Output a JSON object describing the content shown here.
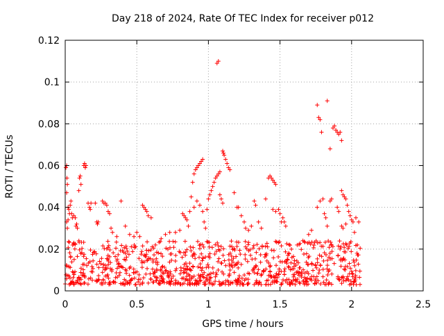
{
  "chart_data": {
    "type": "scatter",
    "title": "Day 218 of 2024, Rate Of TEC Index for receiver p012",
    "xlabel": "GPS time / hours",
    "ylabel": "ROTI / TECUs",
    "xlim": [
      0,
      2.5
    ],
    "ylim": [
      0,
      0.12
    ],
    "x_ticks": [
      0,
      0.5,
      1,
      1.5,
      2,
      2.5
    ],
    "x_tick_labels": [
      "0",
      "0.5",
      "1",
      "1.5",
      "2",
      "2.5"
    ],
    "y_ticks": [
      0,
      0.02,
      0.04,
      0.06,
      0.08,
      0.1,
      0.12
    ],
    "y_tick_labels": [
      "0",
      "0.02",
      "0.04",
      "0.06",
      "0.08",
      "0.1",
      "0.12"
    ],
    "grid": true,
    "legend": "none",
    "marker": "+",
    "series": [
      {
        "color": "#ff0000",
        "points": [
          [
            0.005,
            0.059
          ],
          [
            0.01,
            0.06
          ],
          [
            0.012,
            0.054
          ],
          [
            0.015,
            0.051
          ],
          [
            0.01,
            0.047
          ],
          [
            0.02,
            0.04
          ],
          [
            0.025,
            0.039
          ],
          [
            0.03,
            0.037
          ],
          [
            0.035,
            0.041
          ],
          [
            0.04,
            0.043
          ],
          [
            0.01,
            0.033
          ],
          [
            0.015,
            0.03
          ],
          [
            0.02,
            0.034
          ],
          [
            0.045,
            0.037
          ],
          [
            0.05,
            0.035
          ],
          [
            0.06,
            0.036
          ],
          [
            0.07,
            0.035
          ],
          [
            0.075,
            0.031
          ],
          [
            0.08,
            0.032
          ],
          [
            0.085,
            0.03
          ],
          [
            0.1,
            0.054
          ],
          [
            0.105,
            0.055
          ],
          [
            0.11,
            0.051
          ],
          [
            0.095,
            0.048
          ],
          [
            0.13,
            0.06
          ],
          [
            0.135,
            0.061
          ],
          [
            0.14,
            0.059
          ],
          [
            0.145,
            0.06
          ],
          [
            0.16,
            0.042
          ],
          [
            0.17,
            0.04
          ],
          [
            0.175,
            0.039
          ],
          [
            0.18,
            0.042
          ],
          [
            0.21,
            0.042
          ],
          [
            0.22,
            0.033
          ],
          [
            0.225,
            0.032
          ],
          [
            0.23,
            0.033
          ],
          [
            0.26,
            0.043
          ],
          [
            0.27,
            0.042
          ],
          [
            0.28,
            0.042
          ],
          [
            0.29,
            0.041
          ],
          [
            0.3,
            0.038
          ],
          [
            0.31,
            0.037
          ],
          [
            0.32,
            0.03
          ],
          [
            0.33,
            0.028
          ],
          [
            0.36,
            0.026
          ],
          [
            0.39,
            0.043
          ],
          [
            0.42,
            0.031
          ],
          [
            0.45,
            0.027
          ],
          [
            0.48,
            0.026
          ],
          [
            0.5,
            0.028
          ],
          [
            0.52,
            0.026
          ],
          [
            0.54,
            0.041
          ],
          [
            0.55,
            0.04
          ],
          [
            0.56,
            0.039
          ],
          [
            0.57,
            0.038
          ],
          [
            0.58,
            0.036
          ],
          [
            0.6,
            0.035
          ],
          [
            0.63,
            0.022
          ],
          [
            0.67,
            0.025
          ],
          [
            0.7,
            0.027
          ],
          [
            0.73,
            0.028
          ],
          [
            0.77,
            0.028
          ],
          [
            0.8,
            0.029
          ],
          [
            0.82,
            0.037
          ],
          [
            0.83,
            0.036
          ],
          [
            0.84,
            0.035
          ],
          [
            0.85,
            0.034
          ],
          [
            0.86,
            0.031
          ],
          [
            0.87,
            0.038
          ],
          [
            0.88,
            0.045
          ],
          [
            0.89,
            0.052
          ],
          [
            0.9,
            0.056
          ],
          [
            0.91,
            0.058
          ],
          [
            0.92,
            0.059
          ],
          [
            0.93,
            0.06
          ],
          [
            0.94,
            0.061
          ],
          [
            0.95,
            0.062
          ],
          [
            0.96,
            0.063
          ],
          [
            0.9,
            0.04
          ],
          [
            0.92,
            0.043
          ],
          [
            0.94,
            0.041
          ],
          [
            0.96,
            0.038
          ],
          [
            0.97,
            0.033
          ],
          [
            0.98,
            0.03
          ],
          [
            0.99,
            0.039
          ],
          [
            1.0,
            0.044
          ],
          [
            1.01,
            0.046
          ],
          [
            1.02,
            0.048
          ],
          [
            1.03,
            0.05
          ],
          [
            1.04,
            0.052
          ],
          [
            1.05,
            0.054
          ],
          [
            1.06,
            0.055
          ],
          [
            1.07,
            0.056
          ],
          [
            1.08,
            0.057
          ],
          [
            1.06,
            0.109
          ],
          [
            1.07,
            0.11
          ],
          [
            1.1,
            0.067
          ],
          [
            1.105,
            0.066
          ],
          [
            1.11,
            0.065
          ],
          [
            1.12,
            0.063
          ],
          [
            1.13,
            0.061
          ],
          [
            1.14,
            0.059
          ],
          [
            1.15,
            0.058
          ],
          [
            1.08,
            0.046
          ],
          [
            1.09,
            0.044
          ],
          [
            1.1,
            0.042
          ],
          [
            1.18,
            0.047
          ],
          [
            1.2,
            0.04
          ],
          [
            1.21,
            0.04
          ],
          [
            1.23,
            0.036
          ],
          [
            1.25,
            0.033
          ],
          [
            1.26,
            0.03
          ],
          [
            1.28,
            0.029
          ],
          [
            1.3,
            0.031
          ],
          [
            1.32,
            0.043
          ],
          [
            1.33,
            0.041
          ],
          [
            1.35,
            0.033
          ],
          [
            1.37,
            0.03
          ],
          [
            1.4,
            0.044
          ],
          [
            1.42,
            0.054
          ],
          [
            1.43,
            0.055
          ],
          [
            1.44,
            0.054
          ],
          [
            1.45,
            0.053
          ],
          [
            1.46,
            0.052
          ],
          [
            1.47,
            0.051
          ],
          [
            1.45,
            0.039
          ],
          [
            1.47,
            0.038
          ],
          [
            1.49,
            0.039
          ],
          [
            1.5,
            0.037
          ],
          [
            1.51,
            0.033
          ],
          [
            1.52,
            0.035
          ],
          [
            1.53,
            0.033
          ],
          [
            1.54,
            0.031
          ],
          [
            1.58,
            0.02
          ],
          [
            1.62,
            0.022
          ],
          [
            1.66,
            0.024
          ],
          [
            1.7,
            0.027
          ],
          [
            1.72,
            0.029
          ],
          [
            1.76,
            0.089
          ],
          [
            1.77,
            0.083
          ],
          [
            1.78,
            0.082
          ],
          [
            1.79,
            0.076
          ],
          [
            1.83,
            0.091
          ],
          [
            1.85,
            0.068
          ],
          [
            1.87,
            0.078
          ],
          [
            1.88,
            0.079
          ],
          [
            1.89,
            0.077
          ],
          [
            1.9,
            0.076
          ],
          [
            1.91,
            0.075
          ],
          [
            1.92,
            0.076
          ],
          [
            1.93,
            0.072
          ],
          [
            1.76,
            0.04
          ],
          [
            1.78,
            0.043
          ],
          [
            1.8,
            0.044
          ],
          [
            1.81,
            0.037
          ],
          [
            1.82,
            0.035
          ],
          [
            1.83,
            0.031
          ],
          [
            1.85,
            0.043
          ],
          [
            1.86,
            0.044
          ],
          [
            1.9,
            0.04
          ],
          [
            1.91,
            0.038
          ],
          [
            1.93,
            0.048
          ],
          [
            1.94,
            0.046
          ],
          [
            1.95,
            0.045
          ],
          [
            1.96,
            0.044
          ],
          [
            1.97,
            0.041
          ],
          [
            1.98,
            0.038
          ],
          [
            1.99,
            0.036
          ],
          [
            2.0,
            0.034
          ],
          [
            2.01,
            0.033
          ],
          [
            2.03,
            0.035
          ],
          [
            2.05,
            0.033
          ],
          [
            1.93,
            0.031
          ],
          [
            1.94,
            0.03
          ],
          [
            1.96,
            0.032
          ],
          [
            2.02,
            0.028
          ],
          [
            2.04,
            0.022
          ]
        ]
      }
    ],
    "dense_band": {
      "x_range": [
        0.0,
        2.06
      ],
      "y_range": [
        0.003,
        0.024
      ],
      "description": "dense cloud of points between about 0.005 and 0.02"
    }
  }
}
